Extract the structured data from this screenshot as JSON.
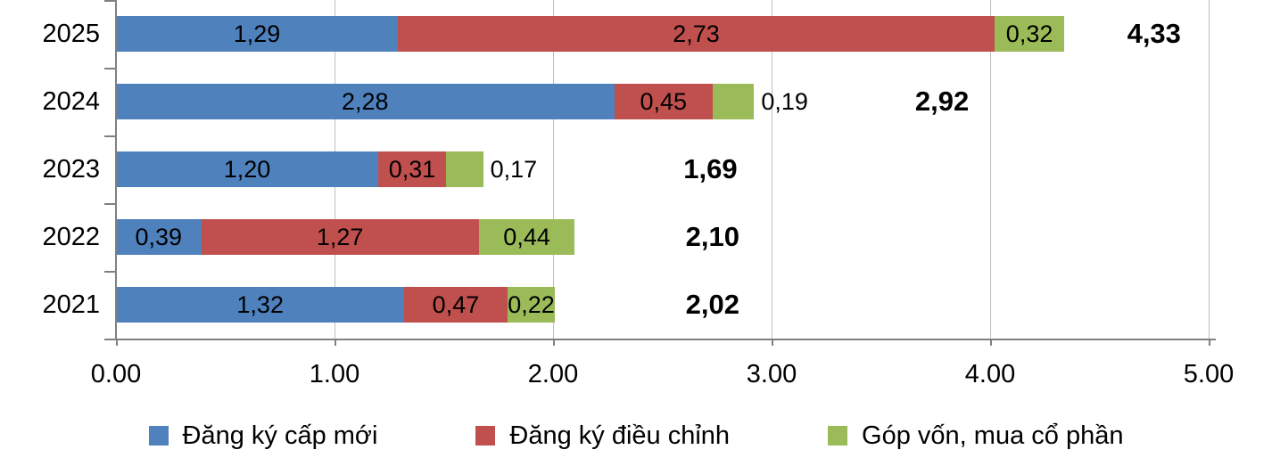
{
  "chart_data": {
    "type": "bar",
    "orientation": "horizontal",
    "stacked": true,
    "title": "",
    "categories": [
      "2025",
      "2024",
      "2023",
      "2022",
      "2021"
    ],
    "series": [
      {
        "name": "Đăng ký cấp mới",
        "color": "#4f81bd",
        "values": [
          1.29,
          2.28,
          1.2,
          0.39,
          1.32
        ],
        "labels": [
          "1,29",
          "2,28",
          "1,20",
          "0,39",
          "1,32"
        ]
      },
      {
        "name": "Đăng ký điều chỉnh",
        "color": "#c0504d",
        "values": [
          2.73,
          0.45,
          0.31,
          1.27,
          0.47
        ],
        "labels": [
          "2,73",
          "0,45",
          "0,31",
          "1,27",
          "0,47"
        ]
      },
      {
        "name": "Góp vốn, mua cổ phần",
        "color": "#9bbb59",
        "values": [
          0.32,
          0.19,
          0.17,
          0.44,
          0.22
        ],
        "labels": [
          "0,32",
          "0,19",
          "0,17",
          "0,44",
          "0,22"
        ]
      }
    ],
    "totals": {
      "values": [
        4.33,
        2.92,
        1.69,
        2.1,
        2.02
      ],
      "labels": [
        "4,33",
        "2,92",
        "1,69",
        "2,10",
        "2,02"
      ]
    },
    "x_axis": {
      "min": 0,
      "max": 5,
      "tick_interval": 1.0,
      "tick_labels": [
        "0.00",
        "1.00",
        "2.00",
        "3.00",
        "4.00",
        "5.00"
      ]
    },
    "legend": {
      "position": "bottom",
      "entries": [
        "Đăng ký cấp mới",
        "Đăng ký điều chỉnh",
        "Góp vốn, mua cổ phần"
      ]
    },
    "gridlines": "vertical",
    "total_label_x_units": [
      4.75,
      3.78,
      2.72,
      2.73,
      2.73
    ],
    "colors": {
      "axis": "#808080",
      "gridline": "#bfbfbf",
      "text": "#000000"
    }
  }
}
